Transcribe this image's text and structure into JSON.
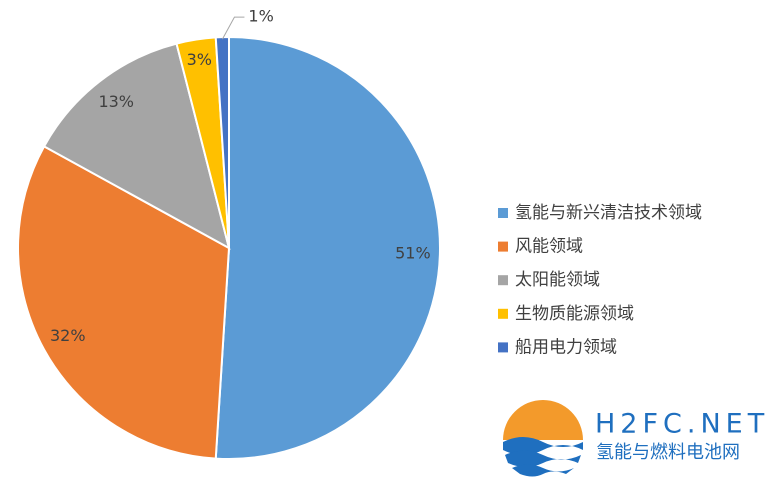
{
  "chart_data": {
    "type": "pie",
    "categories": [
      "氢能与新兴清洁技术领域",
      "风能领域",
      "太阳能领域",
      "生物质能源领域",
      "船用电力领域"
    ],
    "values": [
      51,
      32,
      13,
      3,
      1
    ],
    "value_labels": [
      "51%",
      "32%",
      "13%",
      "3%",
      "1%"
    ],
    "colors": [
      "#5b9bd5",
      "#ed7d31",
      "#a5a5a5",
      "#ffc000",
      "#4472c4"
    ],
    "legend": "right"
  },
  "logo": {
    "title": "H2FC.NET",
    "subtitle": "氢能与燃料电池网"
  }
}
